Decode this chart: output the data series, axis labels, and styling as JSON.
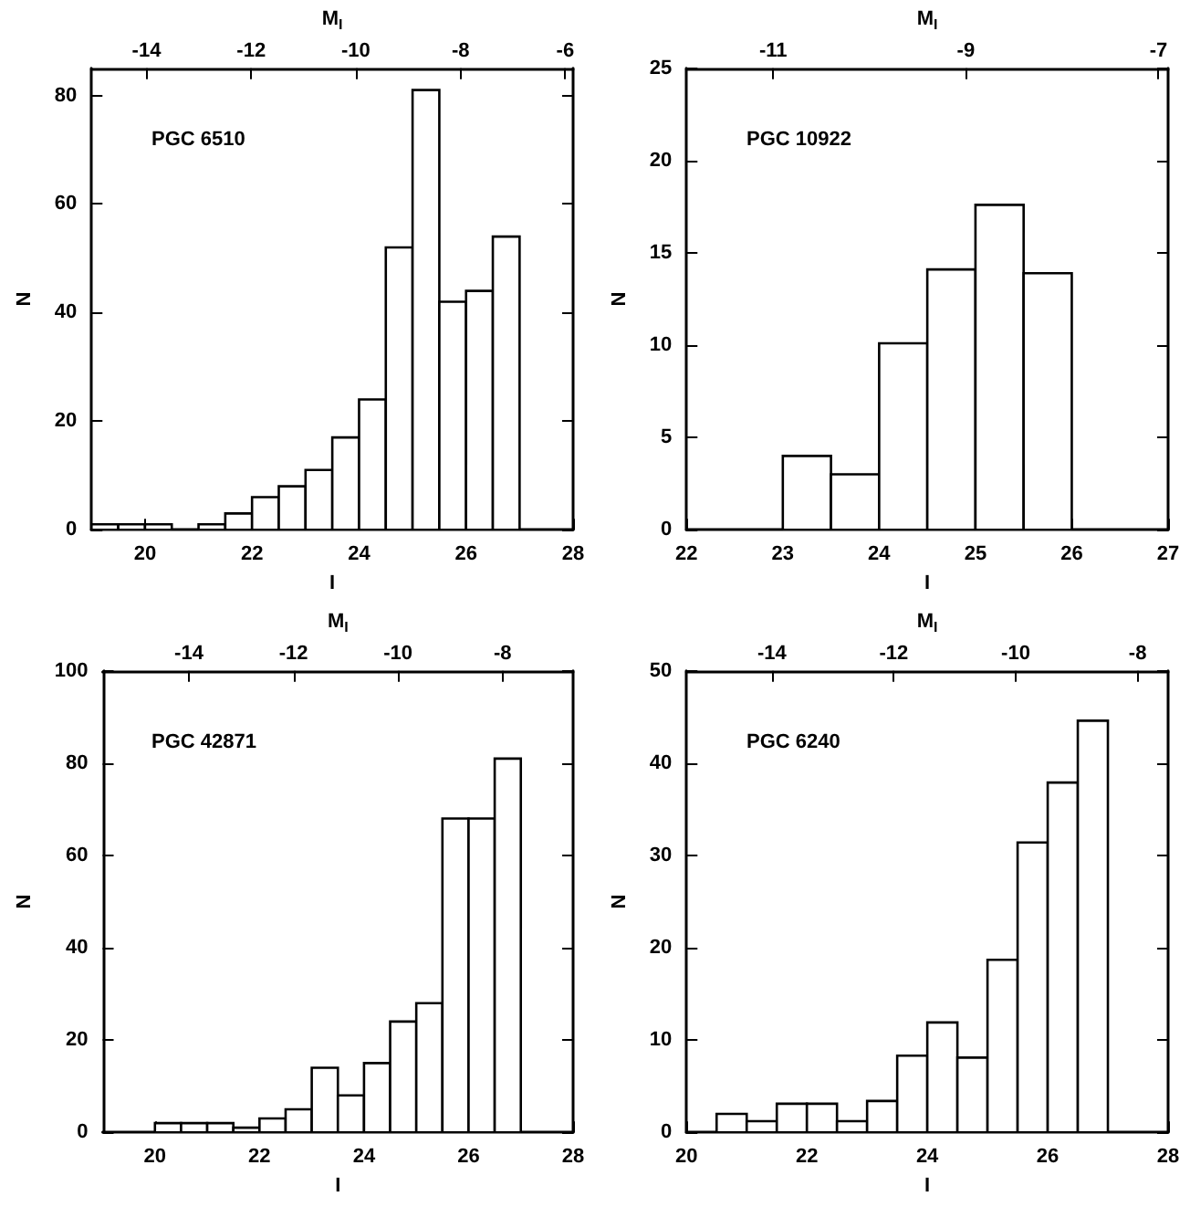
{
  "chart_data": [
    {
      "type": "histogram",
      "title": "PGC 6510",
      "xlabel": "I",
      "ylabel": "N",
      "x2label": "M$_{I}$",
      "color": "#ffffff",
      "bins": [
        19,
        19.5,
        20,
        20.5,
        21,
        21.5,
        22,
        22.5,
        23,
        23.5,
        24,
        24.5,
        25,
        25.5,
        26,
        26.5,
        27
      ],
      "values": [
        1,
        1,
        1,
        0,
        1,
        3,
        6,
        8,
        11,
        17,
        24,
        52,
        81,
        42,
        44,
        54
      ],
      "xlim": [
        19,
        28
      ],
      "xticks": [
        20,
        22,
        24,
        26,
        28
      ],
      "ylim": [
        0,
        85
      ],
      "yticks": [
        0,
        20,
        40,
        60,
        80
      ],
      "x2lim": [
        -15.05,
        -5.85
      ],
      "x2ticks": [
        -14,
        -12,
        -10,
        -8,
        -6
      ]
    },
    {
      "type": "histogram",
      "title": "PGC 10922",
      "xlabel": "I",
      "ylabel": "N",
      "x2label": "M$_{I}$",
      "color": "#ffffff",
      "bins": [
        23,
        23.5,
        24,
        24.5,
        25,
        25.5,
        26
      ],
      "values": [
        4,
        3,
        10.1,
        14.1,
        17.6,
        13.9
      ],
      "xlim": [
        22,
        27
      ],
      "xticks": [
        22,
        23,
        24,
        25,
        26,
        27
      ],
      "ylim": [
        0,
        25
      ],
      "yticks": [
        0,
        5,
        10,
        15,
        20,
        25
      ],
      "x2lim": [
        -11.9,
        -6.9
      ],
      "x2ticks": [
        -11,
        -9,
        -7
      ]
    },
    {
      "type": "histogram",
      "title": "PGC 42871",
      "xlabel": "I",
      "ylabel": "N",
      "x2label": "M$_{I}$",
      "color": "#ffffff",
      "bins": [
        20,
        20.5,
        21,
        21.5,
        22,
        22.5,
        23,
        23.5,
        24,
        24.5,
        25,
        25.5,
        26,
        26.5,
        27
      ],
      "values": [
        2,
        2,
        2,
        1,
        3,
        5,
        14,
        8,
        15,
        24,
        28,
        68,
        68,
        81
      ],
      "xlim": [
        19,
        28
      ],
      "xticks": [
        20,
        22,
        24,
        26,
        28
      ],
      "ylim": [
        0,
        100
      ],
      "yticks": [
        0,
        20,
        40,
        60,
        80,
        100
      ],
      "x2lim": [
        -15.65,
        -6.65
      ],
      "x2ticks": [
        -14,
        -12,
        -10,
        -8
      ]
    },
    {
      "type": "histogram",
      "title": "PGC 6240",
      "xlabel": "I",
      "ylabel": "N",
      "x2label": "M$_{I}$",
      "color": "#ffffff",
      "bins": [
        20.5,
        21,
        21.5,
        22,
        22.5,
        23,
        23.5,
        24,
        24.5,
        25,
        25.5,
        26,
        26.5,
        27
      ],
      "values": [
        2,
        1.2,
        3.1,
        3.1,
        1.2,
        3.4,
        8.3,
        11.9,
        8.1,
        18.7,
        31.4,
        37.9,
        44.6
      ],
      "xlim": [
        20,
        28
      ],
      "xticks": [
        20,
        22,
        24,
        26,
        28
      ],
      "ylim": [
        0,
        50
      ],
      "yticks": [
        0,
        10,
        20,
        30,
        40,
        50
      ],
      "x2lim": [
        -15.4,
        -7.5
      ],
      "x2ticks": [
        -14,
        -12,
        -10,
        -8
      ]
    }
  ]
}
